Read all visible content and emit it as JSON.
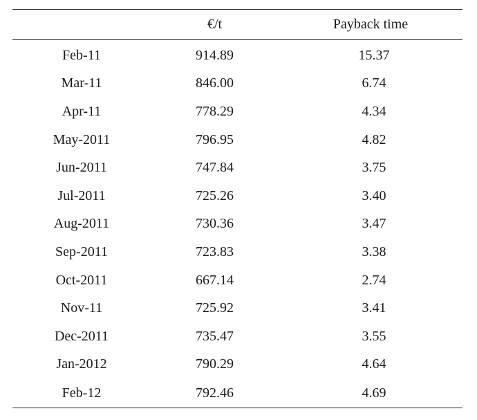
{
  "table": {
    "headers": [
      "",
      "€/t",
      "Payback time"
    ],
    "rows": [
      {
        "month": "Feb-11",
        "price": "914.89",
        "payback": "15.37"
      },
      {
        "month": "Mar-11",
        "price": "846.00",
        "payback": "6.74"
      },
      {
        "month": "Apr-11",
        "price": "778.29",
        "payback": "4.34"
      },
      {
        "month": "May-2011",
        "price": "796.95",
        "payback": "4.82"
      },
      {
        "month": "Jun-2011",
        "price": "747.84",
        "payback": "3.75"
      },
      {
        "month": "Jul-2011",
        "price": "725.26",
        "payback": "3.40"
      },
      {
        "month": "Aug-2011",
        "price": "730.36",
        "payback": "3.47"
      },
      {
        "month": "Sep-2011",
        "price": "723.83",
        "payback": "3.38"
      },
      {
        "month": "Oct-2011",
        "price": "667.14",
        "payback": "2.74"
      },
      {
        "month": "Nov-11",
        "price": "725.92",
        "payback": "3.41"
      },
      {
        "month": "Dec-2011",
        "price": "735.47",
        "payback": "3.55"
      },
      {
        "month": "Jan-2012",
        "price": "790.29",
        "payback": "4.64"
      },
      {
        "month": "Feb-12",
        "price": "792.46",
        "payback": "4.69"
      }
    ]
  }
}
